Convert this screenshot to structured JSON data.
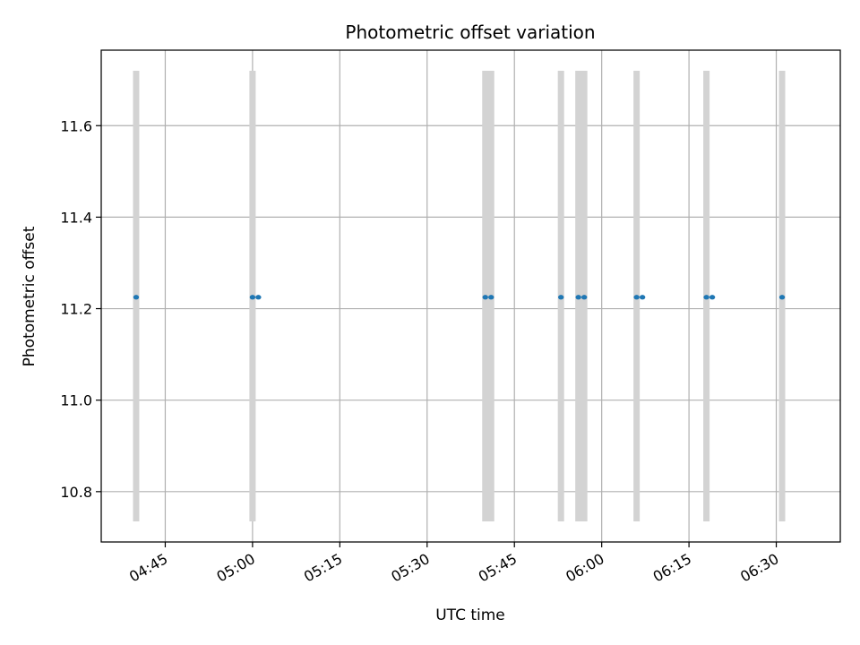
{
  "chart_data": {
    "type": "scatter",
    "title": "Photometric offset variation",
    "xlabel": "UTC time",
    "ylabel": "Photometric offset",
    "x_unit": "minutes after 04:00 UTC",
    "xlim": [
      "04:34",
      "06:41"
    ],
    "ylim": [
      10.69,
      11.765
    ],
    "x_ticks": [
      "04:45",
      "05:00",
      "05:15",
      "05:30",
      "05:45",
      "06:00",
      "06:15",
      "06:30"
    ],
    "y_ticks": [
      10.8,
      11.0,
      11.2,
      11.4,
      11.6
    ],
    "y_tick_labels": [
      "10.8",
      "11.0",
      "11.2",
      "11.4",
      "11.6"
    ],
    "grid": true,
    "legend": "none",
    "colors": {
      "points": "#1f77b4",
      "bands": "#d3d3d3",
      "grid": "#b0b0b0",
      "axes": "#000000"
    },
    "bands": {
      "ymin": 10.735,
      "ymax": 11.72,
      "x": [
        "04:40",
        "05:00",
        "05:40",
        "05:41",
        "05:53",
        "05:56",
        "05:57",
        "06:06",
        "06:18",
        "06:31"
      ]
    },
    "points": [
      {
        "x": "04:40",
        "y": 11.225
      },
      {
        "x": "05:00",
        "y": 11.225
      },
      {
        "x": "05:01",
        "y": 11.225
      },
      {
        "x": "05:40",
        "y": 11.225
      },
      {
        "x": "05:41",
        "y": 11.225
      },
      {
        "x": "05:53",
        "y": 11.225
      },
      {
        "x": "05:56",
        "y": 11.225
      },
      {
        "x": "05:57",
        "y": 11.225
      },
      {
        "x": "06:06",
        "y": 11.225
      },
      {
        "x": "06:07",
        "y": 11.225
      },
      {
        "x": "06:18",
        "y": 11.225
      },
      {
        "x": "06:19",
        "y": 11.225
      },
      {
        "x": "06:31",
        "y": 11.225
      }
    ]
  }
}
